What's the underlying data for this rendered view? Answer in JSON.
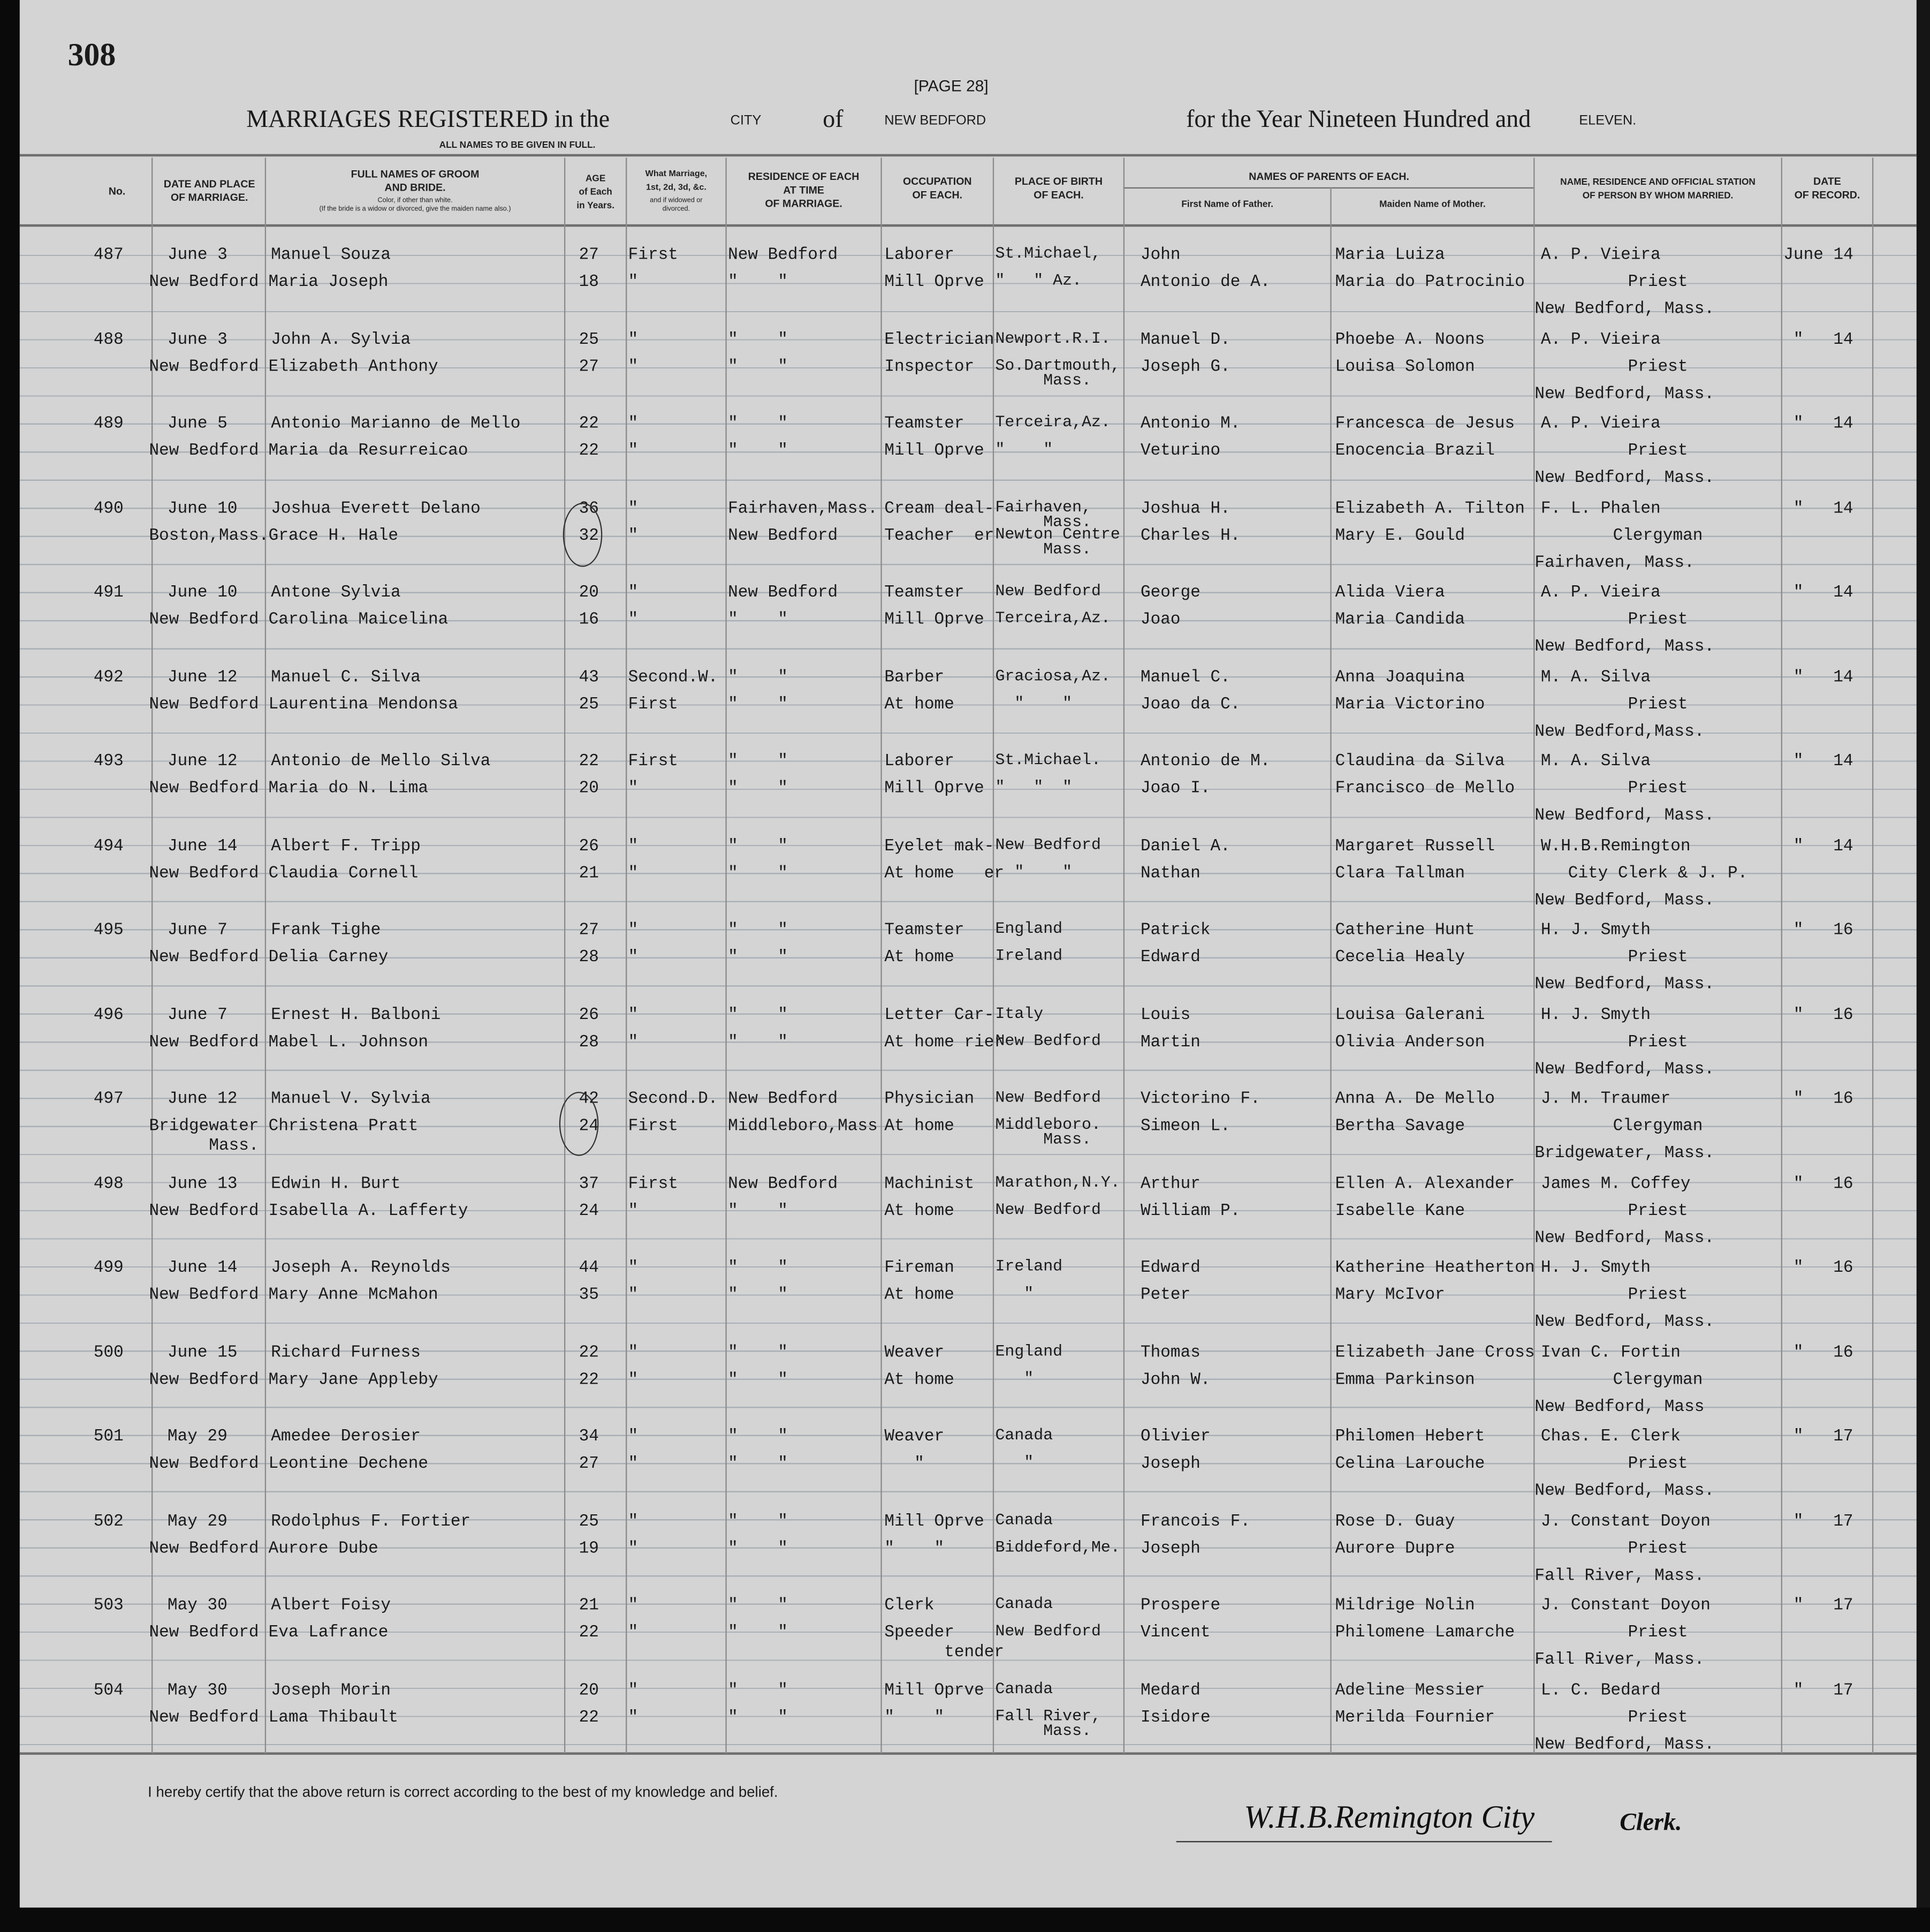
{
  "page_number": "308",
  "page_label": "[PAGE 28]",
  "title": {
    "prefix": "MARRIAGES REGISTERED in the",
    "municipality_type": "CITY",
    "of": "of",
    "municipality": "NEW BEDFORD",
    "year_prefix": "for the Year Nineteen Hundred and",
    "year": "ELEVEN."
  },
  "subtitle": "ALL NAMES TO BE GIVEN IN FULL.",
  "columns": {
    "no": "No.",
    "date_place": "DATE AND PLACE\nOF MARRIAGE.",
    "names": "FULL NAMES OF GROOM\nAND BRIDE.",
    "names_note": "Color, if other than white.\n(If the bride is a widow or divorced, give the maiden name also.)",
    "age": "AGE\nof Each\nin Years.",
    "marriage": "What Marriage,\n1st, 2d, 3d, &c.",
    "marriage_note": "and if widowed or\ndivorced.",
    "residence": "RESIDENCE OF EACH\nAT TIME\nOF MARRIAGE.",
    "occupation": "OCCUPATION\nOF EACH.",
    "birthplace": "PLACE OF BIRTH\nOF EACH.",
    "parents": "NAMES OF PARENTS OF EACH.",
    "father": "First Name of Father.",
    "mother": "Maiden Name of Mother.",
    "officiant": "NAME, RESIDENCE AND OFFICIAL STATION\nOF PERSON BY WHOM MARRIED.",
    "recorded": "DATE\nOF RECORD."
  },
  "records": [
    {
      "no": "487",
      "date": "June 3",
      "place": "New Bedford",
      "groom": "Manuel Souza",
      "bride": "Maria Joseph",
      "age": [
        "27",
        "18"
      ],
      "marriage": [
        "First",
        "\""
      ],
      "residence": [
        "New Bedford",
        "\"    \""
      ],
      "occupation": [
        "Laborer",
        "Mill Oprve"
      ],
      "birthplace": [
        "St.Michael,",
        "\"   \" Az."
      ],
      "father": [
        "John",
        "Antonio de A."
      ],
      "mother": [
        "Maria Luiza",
        "Maria do Patrocinio"
      ],
      "officiant": [
        "A. P. Vieira",
        "Priest",
        "New Bedford, Mass."
      ],
      "recorded": "June 14"
    },
    {
      "no": "488",
      "date": "June 3",
      "place": "New Bedford",
      "groom": "John A. Sylvia",
      "bride": "Elizabeth Anthony",
      "age": [
        "25",
        "27"
      ],
      "marriage": [
        "\"",
        "\""
      ],
      "residence": [
        "\"    \"",
        "\"    \""
      ],
      "occupation": [
        "Electrician",
        "Inspector"
      ],
      "birthplace": [
        "Newport.R.I.",
        "So.Dartmouth,\n     Mass."
      ],
      "father": [
        "Manuel D.",
        "Joseph G."
      ],
      "mother": [
        "Phoebe A. Noons",
        "Louisa Solomon"
      ],
      "officiant": [
        "A. P. Vieira",
        "Priest",
        "New Bedford, Mass."
      ],
      "recorded": "\"   14"
    },
    {
      "no": "489",
      "date": "June 5",
      "place": "New Bedford",
      "groom": "Antonio Marianno de Mello",
      "bride": "Maria da Resurreicao",
      "age": [
        "22",
        "22"
      ],
      "marriage": [
        "\"",
        "\""
      ],
      "residence": [
        "\"    \"",
        "\"    \""
      ],
      "occupation": [
        "Teamster",
        "Mill Oprve"
      ],
      "birthplace": [
        "Terceira,Az.",
        "\"    \""
      ],
      "father": [
        "Antonio M.",
        "Veturino"
      ],
      "mother": [
        "Francesca de Jesus",
        "Enocencia Brazil"
      ],
      "officiant": [
        "A. P. Vieira",
        "Priest",
        "New Bedford, Mass."
      ],
      "recorded": "\"   14"
    },
    {
      "no": "490",
      "date": "June 10",
      "place": "Boston,Mass.",
      "groom": "Joshua Everett Delano",
      "bride": "Grace H. Hale",
      "age": [
        "36",
        "32"
      ],
      "marriage": [
        "\"",
        "\""
      ],
      "residence": [
        "Fairhaven,Mass.",
        "New Bedford"
      ],
      "occupation": [
        "Cream deal-",
        "Teacher  er"
      ],
      "birthplace": [
        "Fairhaven,\n     Mass.",
        "Newton Centre\n     Mass."
      ],
      "father": [
        "Joshua H.",
        "Charles H."
      ],
      "mother": [
        "Elizabeth A. Tilton",
        "Mary E. Gould"
      ],
      "officiant": [
        "F. L. Phalen",
        "Clergyman",
        "Fairhaven, Mass."
      ],
      "recorded": "\"   14"
    },
    {
      "no": "491",
      "date": "June 10",
      "place": "New Bedford",
      "groom": "Antone Sylvia",
      "bride": "Carolina Maicelina",
      "age": [
        "20",
        "16"
      ],
      "marriage": [
        "\"",
        "\""
      ],
      "residence": [
        "New Bedford",
        "\"    \""
      ],
      "occupation": [
        "Teamster",
        "Mill Oprve"
      ],
      "birthplace": [
        "New Bedford",
        "Terceira,Az."
      ],
      "father": [
        "George",
        "Joao"
      ],
      "mother": [
        "Alida Viera",
        "Maria Candida"
      ],
      "officiant": [
        "A. P. Vieira",
        "Priest",
        "New Bedford, Mass."
      ],
      "recorded": "\"   14"
    },
    {
      "no": "492",
      "date": "June 12",
      "place": "New Bedford",
      "groom": "Manuel C. Silva",
      "bride": "Laurentina Mendonsa",
      "age": [
        "43",
        "25"
      ],
      "marriage": [
        "Second.W.",
        "First"
      ],
      "residence": [
        "\"    \"",
        "\"    \""
      ],
      "occupation": [
        "Barber",
        "At home"
      ],
      "birthplace": [
        "Graciosa,Az.",
        "  \"    \""
      ],
      "father": [
        "Manuel C.",
        "Joao da C."
      ],
      "mother": [
        "Anna Joaquina",
        "Maria Victorino"
      ],
      "officiant": [
        "M. A. Silva",
        "Priest",
        "New Bedford,Mass."
      ],
      "recorded": "\"   14"
    },
    {
      "no": "493",
      "date": "June 12",
      "place": "New Bedford",
      "groom": "Antonio de Mello Silva",
      "bride": "Maria do N. Lima",
      "age": [
        "22",
        "20"
      ],
      "marriage": [
        "First",
        "\""
      ],
      "residence": [
        "\"    \"",
        "\"    \""
      ],
      "occupation": [
        "Laborer",
        "Mill Oprve"
      ],
      "birthplace": [
        "St.Michael.",
        "\"   \"  \""
      ],
      "father": [
        "Antonio de M.",
        "Joao I."
      ],
      "mother": [
        "Claudina da Silva",
        "Francisco de Mello"
      ],
      "officiant": [
        "M. A. Silva",
        "Priest",
        "New Bedford, Mass."
      ],
      "recorded": "\"   14"
    },
    {
      "no": "494",
      "date": "June 14",
      "place": "New Bedford",
      "groom": "Albert F. Tripp",
      "bride": "Claudia Cornell",
      "age": [
        "26",
        "21"
      ],
      "marriage": [
        "\"",
        "\""
      ],
      "residence": [
        "\"    \"",
        "\"    \""
      ],
      "occupation": [
        "Eyelet mak-",
        "At home   er"
      ],
      "birthplace": [
        "New Bedford",
        "  \"    \""
      ],
      "father": [
        "Daniel A.",
        "Nathan"
      ],
      "mother": [
        "Margaret Russell",
        "Clara Tallman"
      ],
      "officiant": [
        "W.H.B.Remington",
        "City Clerk & J. P.",
        "New Bedford, Mass."
      ],
      "recorded": "\"   14"
    },
    {
      "no": "495",
      "date": "June 7",
      "place": "New Bedford",
      "groom": "Frank Tighe",
      "bride": "Delia Carney",
      "age": [
        "27",
        "28"
      ],
      "marriage": [
        "\"",
        "\""
      ],
      "residence": [
        "\"    \"",
        "\"    \""
      ],
      "occupation": [
        "Teamster",
        "At home"
      ],
      "birthplace": [
        "England",
        "Ireland"
      ],
      "father": [
        "Patrick",
        "Edward"
      ],
      "mother": [
        "Catherine Hunt",
        "Cecelia Healy"
      ],
      "officiant": [
        "H. J. Smyth",
        "Priest",
        "New Bedford, Mass."
      ],
      "recorded": "\"   16"
    },
    {
      "no": "496",
      "date": "June 7",
      "place": "New Bedford",
      "groom": "Ernest H. Balboni",
      "bride": "Mabel L. Johnson",
      "age": [
        "26",
        "28"
      ],
      "marriage": [
        "\"",
        "\""
      ],
      "residence": [
        "\"    \"",
        "\"    \""
      ],
      "occupation": [
        "Letter Car-",
        "At home rier"
      ],
      "birthplace": [
        "Italy",
        "New Bedford"
      ],
      "father": [
        "Louis",
        "Martin"
      ],
      "mother": [
        "Louisa Galerani",
        "Olivia Anderson"
      ],
      "officiant": [
        "H. J. Smyth",
        "Priest",
        "New Bedford, Mass."
      ],
      "recorded": "\"   16"
    },
    {
      "no": "497",
      "date": "June 12",
      "place": "Bridgewater\n      Mass.",
      "groom": "Manuel V. Sylvia",
      "bride": "Christena Pratt",
      "age": [
        "42",
        "24"
      ],
      "marriage": [
        "Second.D.",
        "First"
      ],
      "residence": [
        "New Bedford",
        "Middleboro,Mass"
      ],
      "occupation": [
        "Physician",
        "At home"
      ],
      "birthplace": [
        "New Bedford",
        "Middleboro.\n     Mass."
      ],
      "father": [
        "Victorino F.",
        "Simeon L."
      ],
      "mother": [
        "Anna A. De Mello",
        "Bertha Savage"
      ],
      "officiant": [
        "J. M. Traumer",
        "Clergyman",
        "Bridgewater, Mass."
      ],
      "recorded": "\"   16"
    },
    {
      "no": "498",
      "date": "June 13",
      "place": "New Bedford",
      "groom": "Edwin H. Burt",
      "bride": "Isabella A. Lafferty",
      "age": [
        "37",
        "24"
      ],
      "marriage": [
        "First",
        "\""
      ],
      "residence": [
        "New Bedford",
        "\"    \""
      ],
      "occupation": [
        "Machinist",
        "At home"
      ],
      "birthplace": [
        "Marathon,N.Y.",
        "New Bedford"
      ],
      "father": [
        "Arthur",
        "William P."
      ],
      "mother": [
        "Ellen A. Alexander",
        "Isabelle Kane"
      ],
      "officiant": [
        "James M. Coffey",
        "Priest",
        "New Bedford, Mass."
      ],
      "recorded": "\"   16"
    },
    {
      "no": "499",
      "date": "June 14",
      "place": "New Bedford",
      "groom": "Joseph A. Reynolds",
      "bride": "Mary Anne McMahon",
      "age": [
        "44",
        "35"
      ],
      "marriage": [
        "\"",
        "\""
      ],
      "residence": [
        "\"    \"",
        "\"    \""
      ],
      "occupation": [
        "Fireman",
        "At home"
      ],
      "birthplace": [
        "Ireland",
        "   \""
      ],
      "father": [
        "Edward",
        "Peter"
      ],
      "mother": [
        "Katherine Heatherton",
        "Mary McIvor"
      ],
      "officiant": [
        "H. J. Smyth",
        "Priest",
        "New Bedford, Mass."
      ],
      "recorded": "\"   16"
    },
    {
      "no": "500",
      "date": "June 15",
      "place": "New Bedford",
      "groom": "Richard Furness",
      "bride": "Mary Jane Appleby",
      "age": [
        "22",
        "22"
      ],
      "marriage": [
        "\"",
        "\""
      ],
      "residence": [
        "\"    \"",
        "\"    \""
      ],
      "occupation": [
        "Weaver",
        "At home"
      ],
      "birthplace": [
        "England",
        "   \""
      ],
      "father": [
        "Thomas",
        "John W."
      ],
      "mother": [
        "Elizabeth Jane Cross",
        "Emma Parkinson"
      ],
      "officiant": [
        "Ivan C. Fortin",
        "Clergyman",
        "New Bedford, Mass"
      ],
      "recorded": "\"   16"
    },
    {
      "no": "501",
      "date": "May 29",
      "place": "New Bedford",
      "groom": "Amedee Derosier",
      "bride": "Leontine Dechene",
      "age": [
        "34",
        "27"
      ],
      "marriage": [
        "\"",
        "\""
      ],
      "residence": [
        "\"    \"",
        "\"    \""
      ],
      "occupation": [
        "Weaver",
        "   \""
      ],
      "birthplace": [
        "Canada",
        "   \""
      ],
      "father": [
        "Olivier",
        "Joseph"
      ],
      "mother": [
        "Philomen Hebert",
        "Celina Larouche"
      ],
      "officiant": [
        "Chas. E. Clerk",
        "Priest",
        "New Bedford, Mass."
      ],
      "recorded": "\"   17"
    },
    {
      "no": "502",
      "date": "May 29",
      "place": "New Bedford",
      "groom": "Rodolphus F. Fortier",
      "bride": "Aurore Dube",
      "age": [
        "25",
        "19"
      ],
      "marriage": [
        "\"",
        "\""
      ],
      "residence": [
        "\"    \"",
        "\"    \""
      ],
      "occupation": [
        "Mill Oprve",
        "\"    \""
      ],
      "birthplace": [
        "Canada",
        "Biddeford,Me."
      ],
      "father": [
        "Francois F.",
        "Joseph"
      ],
      "mother": [
        "Rose D. Guay",
        "Aurore Dupre"
      ],
      "officiant": [
        "J. Constant Doyon",
        "Priest",
        "Fall River, Mass."
      ],
      "recorded": "\"   17"
    },
    {
      "no": "503",
      "date": "May 30",
      "place": "New Bedford",
      "groom": "Albert Foisy",
      "bride": "Eva Lafrance",
      "age": [
        "21",
        "22"
      ],
      "marriage": [
        "\"",
        "\""
      ],
      "residence": [
        "\"    \"",
        "\"    \""
      ],
      "occupation": [
        "Clerk",
        "Speeder\n      tender"
      ],
      "birthplace": [
        "Canada",
        "New Bedford"
      ],
      "father": [
        "Prospere",
        "Vincent"
      ],
      "mother": [
        "Mildrige Nolin",
        "Philomene Lamarche"
      ],
      "officiant": [
        "J. Constant Doyon",
        "Priest",
        "Fall River, Mass."
      ],
      "recorded": "\"   17"
    },
    {
      "no": "504",
      "date": "May 30",
      "place": "New Bedford",
      "groom": "Joseph Morin",
      "bride": "Lama Thibault",
      "age": [
        "20",
        "22"
      ],
      "marriage": [
        "\"",
        "\""
      ],
      "residence": [
        "\"    \"",
        "\"    \""
      ],
      "occupation": [
        "Mill Oprve",
        "\"    \""
      ],
      "birthplace": [
        "Canada",
        "Fall River,\n     Mass."
      ],
      "father": [
        "Medard",
        "Isidore"
      ],
      "mother": [
        "Adeline Messier",
        "Merilda Fournier"
      ],
      "officiant": [
        "L. C. Bedard",
        "Priest",
        "New Bedford, Mass."
      ],
      "recorded": "\"   17"
    }
  ],
  "footer": {
    "certification": "I hereby certify that the above return is correct according to the best of my knowledge and belief.",
    "signature": "W.H.B.Remington City",
    "signature_title": "Clerk."
  }
}
